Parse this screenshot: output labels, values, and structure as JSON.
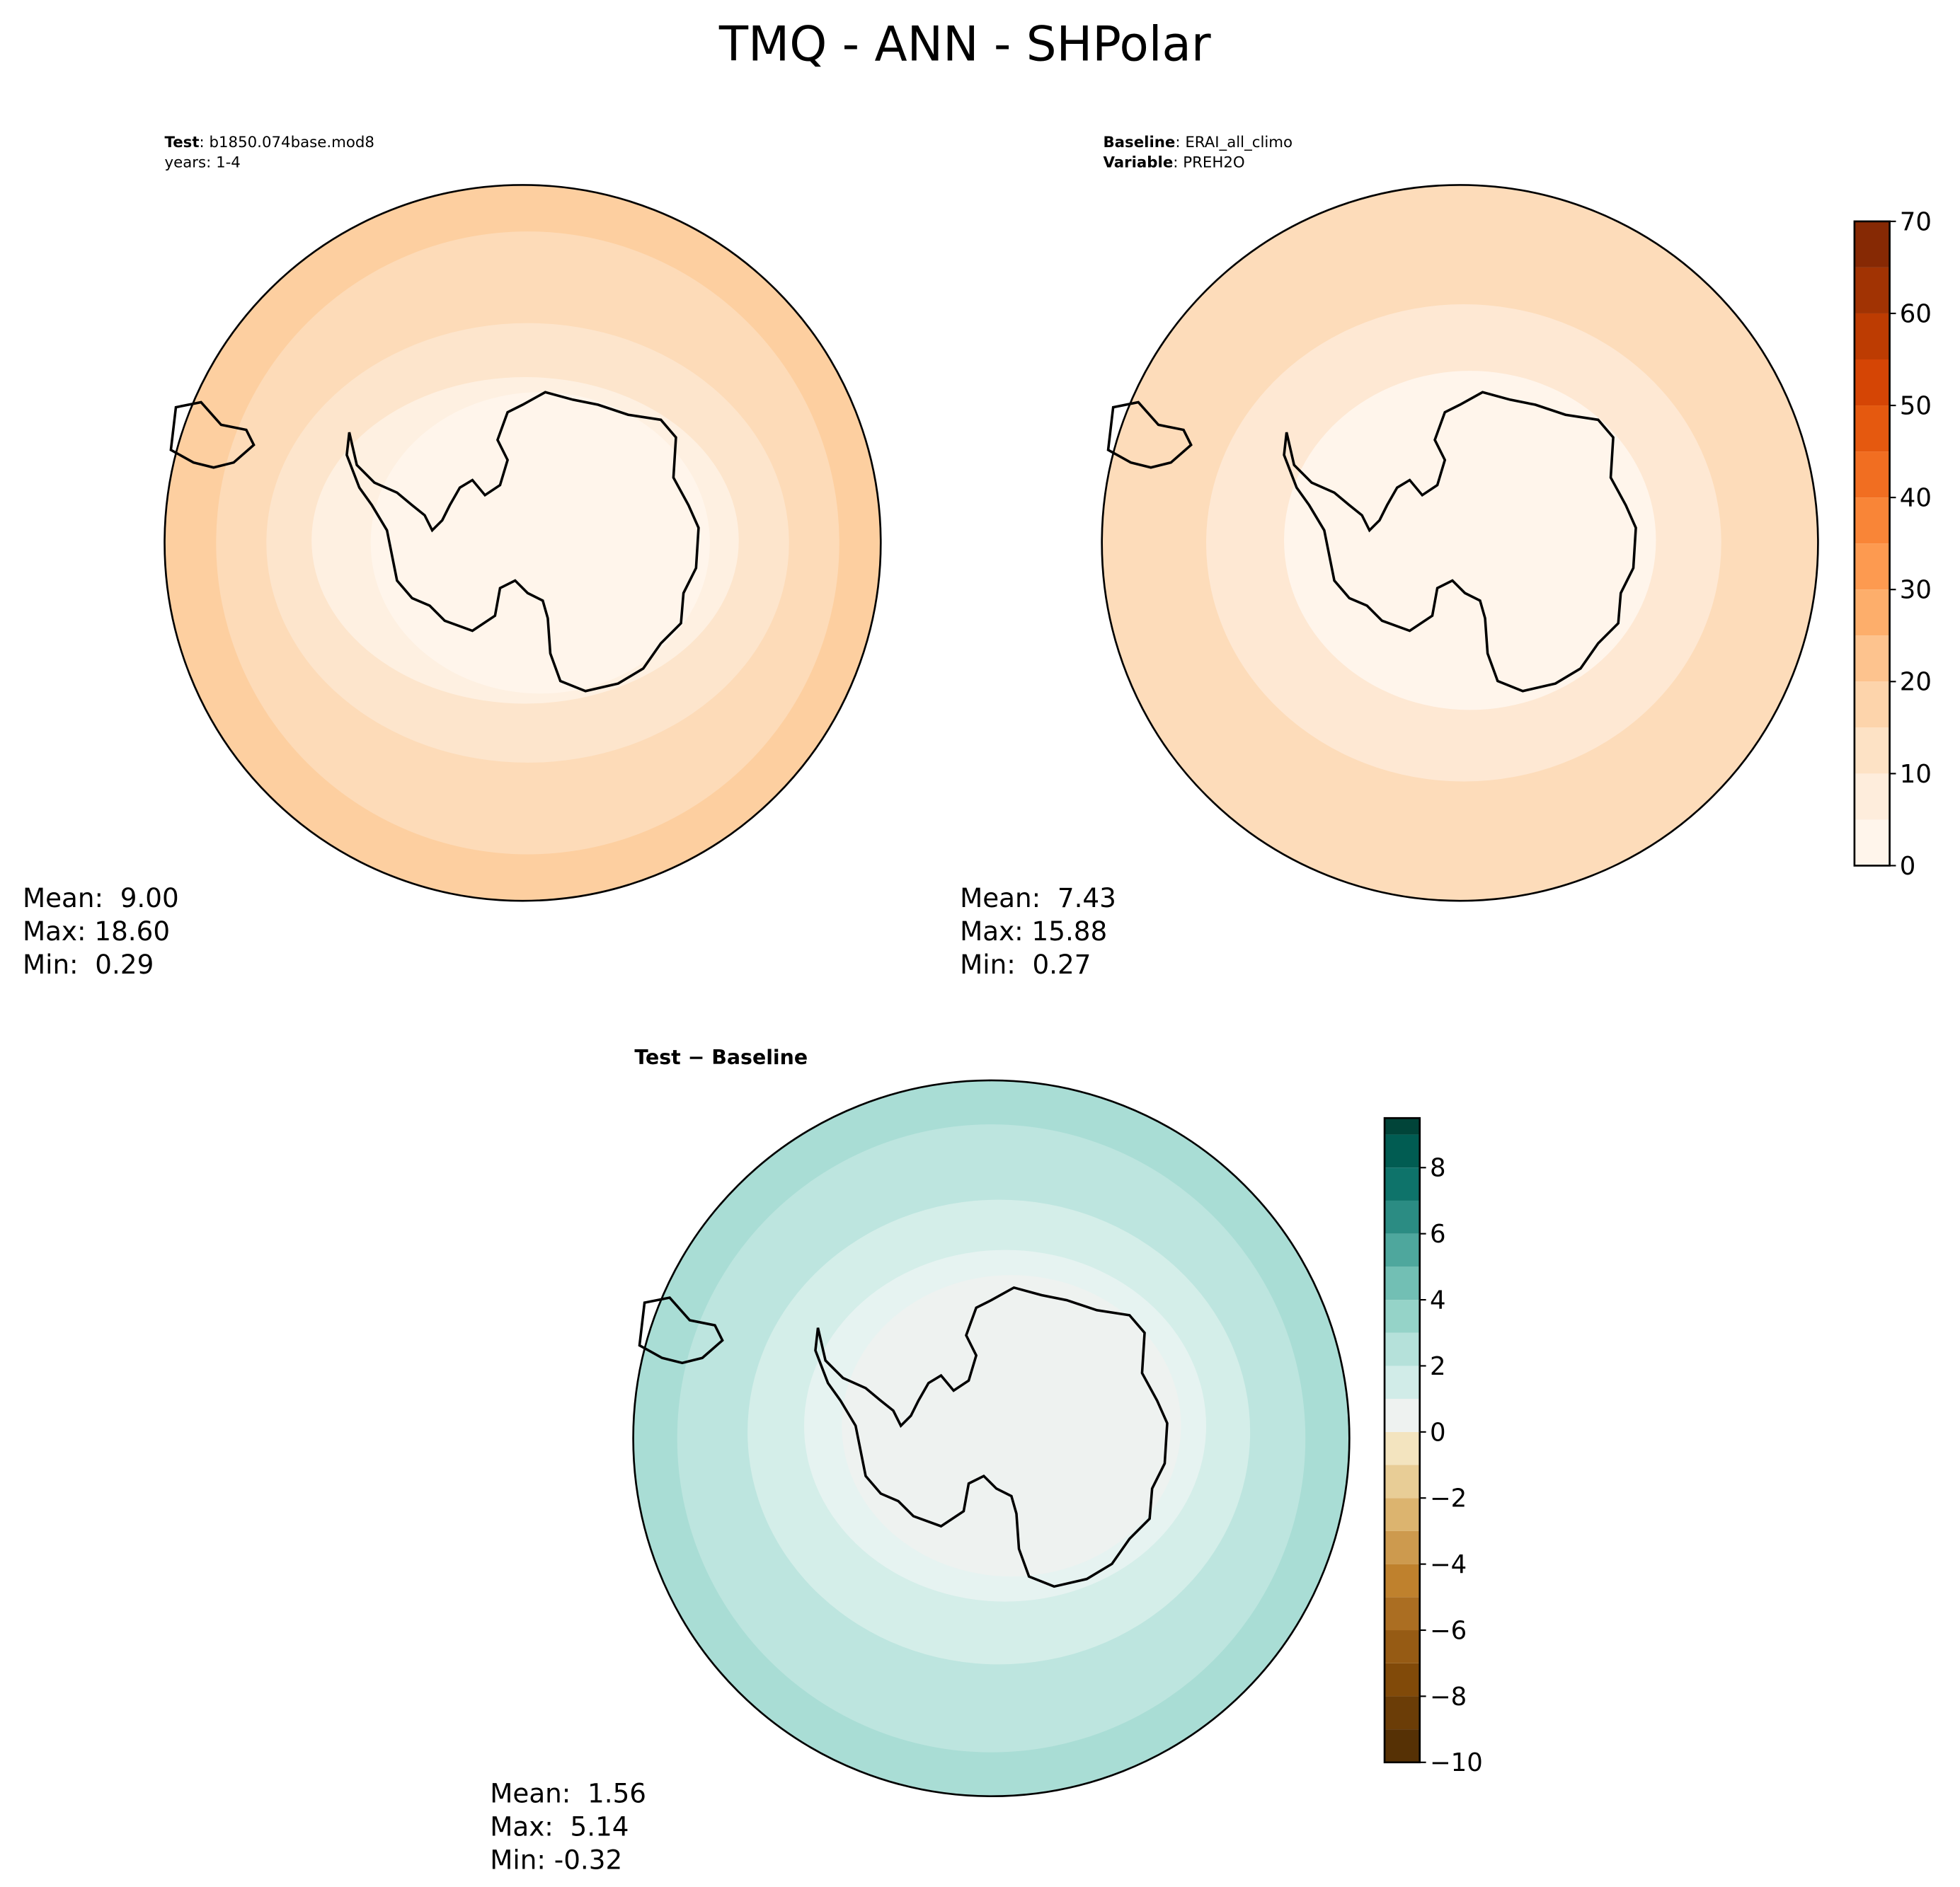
{
  "chart_data": [
    {
      "type": "polar-map",
      "suptitle": "TMQ - ANN - SHPolar",
      "header": [
        {
          "key": "Test",
          "text": ": b1850.074base.mod8"
        },
        {
          "text": "years: 1-4"
        }
      ],
      "stats": [
        "Mean:  9.00",
        "Max: 18.60",
        "Min:  0.29"
      ]
    },
    {
      "type": "polar-map",
      "header": [
        {
          "key": "Baseline",
          "text": ": ERAI_all_climo"
        },
        {
          "key": "Variable",
          "text": ": PREH2O"
        }
      ],
      "stats": [
        "Mean:  7.43",
        "Max: 15.88",
        "Min:  0.27"
      ],
      "colorbar": {
        "ylim": [
          0,
          70
        ],
        "yticks": [
          0,
          10,
          20,
          30,
          40,
          50,
          60,
          70
        ],
        "levels": [
          0,
          5,
          10,
          15,
          20,
          25,
          30,
          35,
          40,
          45,
          50,
          55,
          60,
          65
        ],
        "colors": [
          "#fff5eb",
          "#feeddc",
          "#fde2c5",
          "#fdd4ab",
          "#fdc38e",
          "#fdae6b",
          "#fd9a50",
          "#f98537",
          "#f16e21",
          "#e5590f",
          "#d54505",
          "#bd3c02",
          "#a13303",
          "#862904"
        ]
      }
    },
    {
      "type": "polar-map",
      "title": "Test − Baseline",
      "stats": [
        "Mean:  1.56",
        "Max:  5.14",
        "Min: -0.32"
      ],
      "colorbar": {
        "ylim": [
          -10,
          9.5
        ],
        "yticks": [
          {
            "value": -10,
            "label": "−10"
          },
          {
            "value": -8,
            "label": "−8"
          },
          {
            "value": -6,
            "label": "−6"
          },
          {
            "value": -4,
            "label": "−4"
          },
          {
            "value": -2,
            "label": "−2"
          },
          0,
          2,
          4,
          6,
          8
        ],
        "levels": [
          -10,
          -9,
          -8,
          -7,
          -6,
          -5,
          -4,
          -3,
          -2,
          -1,
          0,
          1,
          2,
          3,
          4,
          5,
          6,
          7,
          8,
          9
        ],
        "colors": [
          "#563105",
          "#6b3d07",
          "#814a09",
          "#965b14",
          "#ab6e22",
          "#bf812d",
          "#cd9a4e",
          "#dcb46f",
          "#e8cd96",
          "#f3e4bf",
          "#eef2f0",
          "#d1ece8",
          "#b5e1da",
          "#95d3c8",
          "#72bfb4",
          "#4ea79d",
          "#2b8c83",
          "#0e736a",
          "#015c52",
          "#014439"
        ]
      }
    }
  ]
}
